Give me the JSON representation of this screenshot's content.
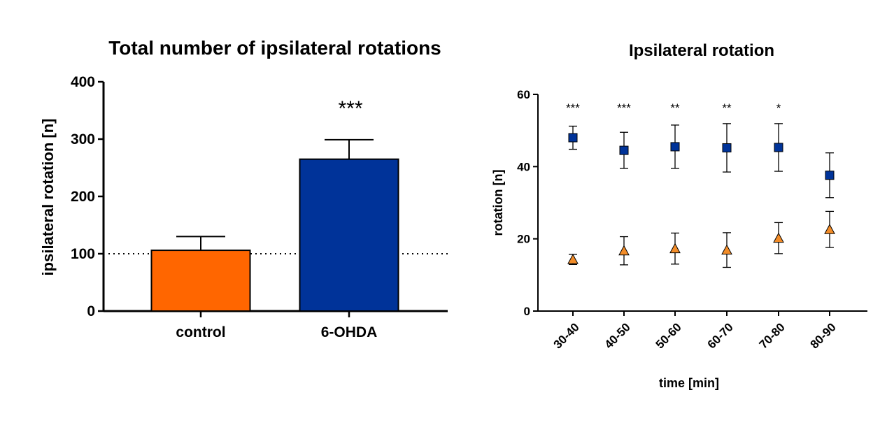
{
  "chart_data": [
    {
      "type": "bar",
      "title": "Total number of ipsilateral rotations",
      "xlabel": "",
      "ylabel": "ipsilateral rotation [n]",
      "ylim": [
        0,
        400
      ],
      "yticks": [
        "0",
        "100",
        "200",
        "300",
        "400"
      ],
      "categories": [
        "control",
        "6-OHDA"
      ],
      "values": [
        106,
        265
      ],
      "errors": [
        24,
        34
      ],
      "colors": [
        "#ff6600",
        "#003399"
      ],
      "reference_line": 100,
      "significance": [
        "",
        "***"
      ]
    },
    {
      "type": "scatter",
      "title": "Ipsilateral rotation",
      "xlabel": "time [min]",
      "ylabel": "rotation [n]",
      "ylim": [
        0,
        60
      ],
      "yticks": [
        "0",
        "20",
        "40",
        "60"
      ],
      "categories": [
        "30-40",
        "40-50",
        "50-60",
        "60-70",
        "70-80",
        "80-90"
      ],
      "series": [
        {
          "name": "6-OHDA",
          "marker": "square",
          "color": "#003399",
          "values": [
            48,
            44.5,
            45.5,
            45.2,
            45.3,
            37.6
          ],
          "errors": [
            3.2,
            5,
            6,
            6.7,
            6.6,
            6.2
          ]
        },
        {
          "name": "control",
          "marker": "triangle",
          "color": "#f28c28",
          "values": [
            14.3,
            16.7,
            17.3,
            16.9,
            20.2,
            22.6
          ],
          "errors": [
            1.4,
            3.9,
            4.3,
            4.8,
            4.3,
            5
          ]
        }
      ],
      "significance": [
        "***",
        "***",
        "**",
        "**",
        "*",
        ""
      ]
    }
  ]
}
